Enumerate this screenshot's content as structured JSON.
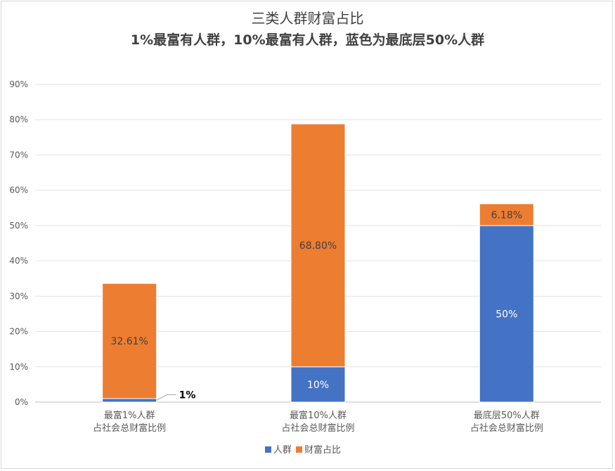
{
  "chart_data": {
    "type": "bar",
    "stacked": true,
    "title": "三类人群财富占比",
    "subtitle": "1%最富有人群，10%最富有人群，蓝色为最底层50%人群",
    "categories": [
      [
        "最富1%人群",
        "占社会总财富比例"
      ],
      [
        "最富10%人群",
        "占社会总财富比例"
      ],
      [
        "最底层50%人群",
        "占社会总财富比例"
      ]
    ],
    "series": [
      {
        "name": "人群",
        "color": "#4472c4",
        "values": [
          1,
          10,
          50
        ],
        "labels": [
          "1%",
          "10%",
          "50%"
        ]
      },
      {
        "name": "财富占比",
        "color": "#ed7d31",
        "values": [
          32.61,
          68.8,
          6.18
        ],
        "labels": [
          "32.61%",
          "68.80%",
          "6.18%"
        ]
      }
    ],
    "ylim": [
      0,
      90
    ],
    "yticks": [
      "0%",
      "10%",
      "20%",
      "30%",
      "40%",
      "50%",
      "60%",
      "70%",
      "80%",
      "90%"
    ],
    "grid": true,
    "legend": "bottom"
  }
}
